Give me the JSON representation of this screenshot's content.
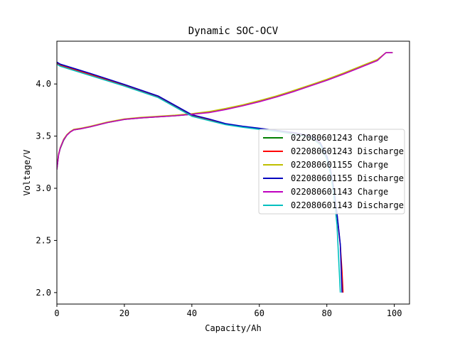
{
  "chart_data": {
    "type": "line",
    "title": "Dynamic SOC-OCV",
    "xlabel": "Capacity/Ah",
    "ylabel": "Voltage/V",
    "xlim": [
      0,
      104.5
    ],
    "ylim": [
      1.89,
      4.41
    ],
    "xticks": [
      0,
      20,
      40,
      60,
      80,
      100
    ],
    "yticks": [
      2.0,
      2.5,
      3.0,
      3.5,
      4.0
    ],
    "xtick_labels": [
      "0",
      "20",
      "40",
      "60",
      "80",
      "100"
    ],
    "ytick_labels": [
      "2.0",
      "2.5",
      "3.0",
      "3.5",
      "4.0"
    ],
    "grid": false,
    "legend_position": "center-right",
    "series": [
      {
        "name": "022080601243 Charge",
        "color": "#008000",
        "x": [
          0,
          0.5,
          1,
          2,
          3,
          4,
          5,
          7,
          10,
          15,
          20,
          25,
          30,
          35,
          40,
          45,
          50,
          55,
          60,
          65,
          70,
          75,
          80,
          85,
          90,
          95,
          97.5,
          99.5
        ],
        "y": [
          3.18,
          3.32,
          3.38,
          3.46,
          3.51,
          3.54,
          3.56,
          3.57,
          3.59,
          3.63,
          3.66,
          3.675,
          3.685,
          3.695,
          3.71,
          3.73,
          3.76,
          3.795,
          3.835,
          3.88,
          3.93,
          3.985,
          4.04,
          4.1,
          4.165,
          4.23,
          4.3,
          4.3
        ]
      },
      {
        "name": "022080601243 Discharge",
        "color": "#ff0000",
        "x": [
          0,
          1,
          5,
          10,
          20,
          30,
          40,
          45,
          50,
          55,
          60,
          65,
          70,
          75,
          78,
          80,
          81,
          82,
          83,
          84,
          84.5,
          84.8
        ],
        "y": [
          4.2,
          4.18,
          4.14,
          4.09,
          3.99,
          3.88,
          3.7,
          3.66,
          3.615,
          3.59,
          3.57,
          3.55,
          3.53,
          3.5,
          3.43,
          3.3,
          3.18,
          3.0,
          2.75,
          2.45,
          2.2,
          2.0
        ]
      },
      {
        "name": "022080601155 Charge",
        "color": "#bfbf00",
        "x": [
          0,
          0.5,
          1,
          2,
          3,
          4,
          5,
          7,
          10,
          15,
          20,
          25,
          30,
          35,
          40,
          45,
          50,
          55,
          60,
          65,
          70,
          75,
          80,
          85,
          90,
          95,
          97.5,
          99.5
        ],
        "y": [
          3.19,
          3.33,
          3.39,
          3.47,
          3.515,
          3.545,
          3.565,
          3.575,
          3.595,
          3.635,
          3.665,
          3.68,
          3.69,
          3.7,
          3.715,
          3.735,
          3.765,
          3.8,
          3.84,
          3.885,
          3.935,
          3.99,
          4.045,
          4.105,
          4.17,
          4.235,
          4.3,
          4.3
        ]
      },
      {
        "name": "022080601155 Discharge",
        "color": "#0000bf",
        "x": [
          0,
          1,
          5,
          10,
          20,
          30,
          40,
          45,
          50,
          55,
          60,
          65,
          70,
          75,
          78,
          80,
          81,
          82,
          83,
          84,
          84.5
        ],
        "y": [
          4.21,
          4.19,
          4.15,
          4.1,
          3.995,
          3.885,
          3.705,
          3.665,
          3.62,
          3.595,
          3.575,
          3.555,
          3.535,
          3.505,
          3.44,
          3.31,
          3.19,
          3.01,
          2.76,
          2.46,
          2.0
        ]
      },
      {
        "name": "022080601143 Charge",
        "color": "#bf00bf",
        "x": [
          0,
          0.5,
          1,
          2,
          3,
          4,
          5,
          7,
          10,
          15,
          20,
          25,
          30,
          35,
          40,
          45,
          50,
          55,
          60,
          65,
          70,
          75,
          80,
          85,
          90,
          95,
          97.5,
          99.5
        ],
        "y": [
          3.18,
          3.32,
          3.385,
          3.465,
          3.51,
          3.54,
          3.56,
          3.57,
          3.59,
          3.63,
          3.66,
          3.675,
          3.685,
          3.695,
          3.71,
          3.725,
          3.755,
          3.79,
          3.83,
          3.875,
          3.925,
          3.98,
          4.035,
          4.095,
          4.16,
          4.225,
          4.3,
          4.3
        ]
      },
      {
        "name": "022080601143 Discharge",
        "color": "#00bfbf",
        "x": [
          0,
          1,
          5,
          10,
          20,
          30,
          40,
          45,
          50,
          55,
          60,
          65,
          70,
          75,
          78,
          80,
          81,
          82,
          83,
          84
        ],
        "y": [
          4.19,
          4.17,
          4.13,
          4.08,
          3.98,
          3.87,
          3.69,
          3.65,
          3.61,
          3.585,
          3.565,
          3.545,
          3.52,
          3.49,
          3.42,
          3.28,
          3.15,
          2.95,
          2.65,
          2.0
        ]
      }
    ]
  }
}
